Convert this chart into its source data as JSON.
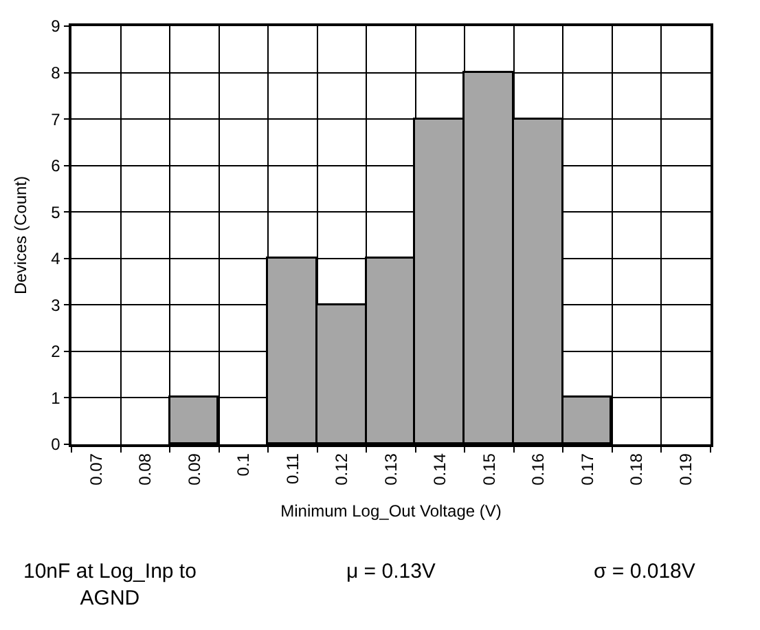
{
  "chart_data": {
    "type": "bar",
    "xlabel": "Minimum Log_Out Voltage (V)",
    "ylabel": "Devices (Count)",
    "categories": [
      "0.07",
      "0.08",
      "0.09",
      "0.1",
      "0.11",
      "0.12",
      "0.13",
      "0.14",
      "0.15",
      "0.16",
      "0.17",
      "0.18",
      "0.19"
    ],
    "values": [
      0,
      0,
      1,
      0,
      4,
      3,
      4,
      7,
      8,
      7,
      1,
      0,
      0
    ],
    "color": "#a6a6a6",
    "ylim": [
      0,
      9
    ],
    "yticks": [
      0,
      1,
      2,
      3,
      4,
      5,
      6,
      7,
      8,
      9
    ],
    "grid": true,
    "legend": false,
    "annotations": [
      "10nF at Log_Inp to\nAGND",
      "μ = 0.13V",
      "σ = 0.018V"
    ]
  }
}
